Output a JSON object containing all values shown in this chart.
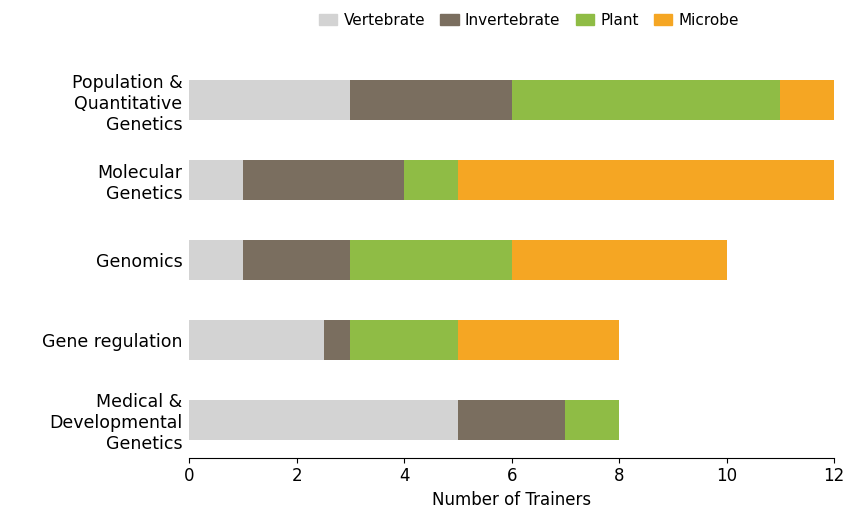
{
  "categories": [
    "Medical &\nDevelopmental\nGenetics",
    "Gene regulation",
    "Genomics",
    "Molecular\nGenetics",
    "Population &\nQuantitative\nGenetics"
  ],
  "series": {
    "Vertebrate": [
      5,
      2.5,
      1,
      1,
      3
    ],
    "Invertebrate": [
      2,
      0.5,
      2,
      3,
      3
    ],
    "Plant": [
      1,
      2,
      3,
      1,
      5
    ],
    "Microbe": [
      0,
      3,
      4,
      7,
      1
    ]
  },
  "colors": {
    "Vertebrate": "#d3d3d3",
    "Invertebrate": "#7a6e5f",
    "Plant": "#8fbc45",
    "Microbe": "#f5a623"
  },
  "xlabel": "Number of Trainers",
  "xlim": [
    0,
    12
  ],
  "xticks": [
    0,
    2,
    4,
    6,
    8,
    10,
    12
  ],
  "legend_order": [
    "Vertebrate",
    "Invertebrate",
    "Plant",
    "Microbe"
  ],
  "bar_height": 0.5,
  "figsize": [
    8.6,
    5.2
  ],
  "dpi": 100,
  "background_color": "#ffffff",
  "font_size_labels": 12.5,
  "font_size_axis": 12,
  "font_size_legend": 11
}
